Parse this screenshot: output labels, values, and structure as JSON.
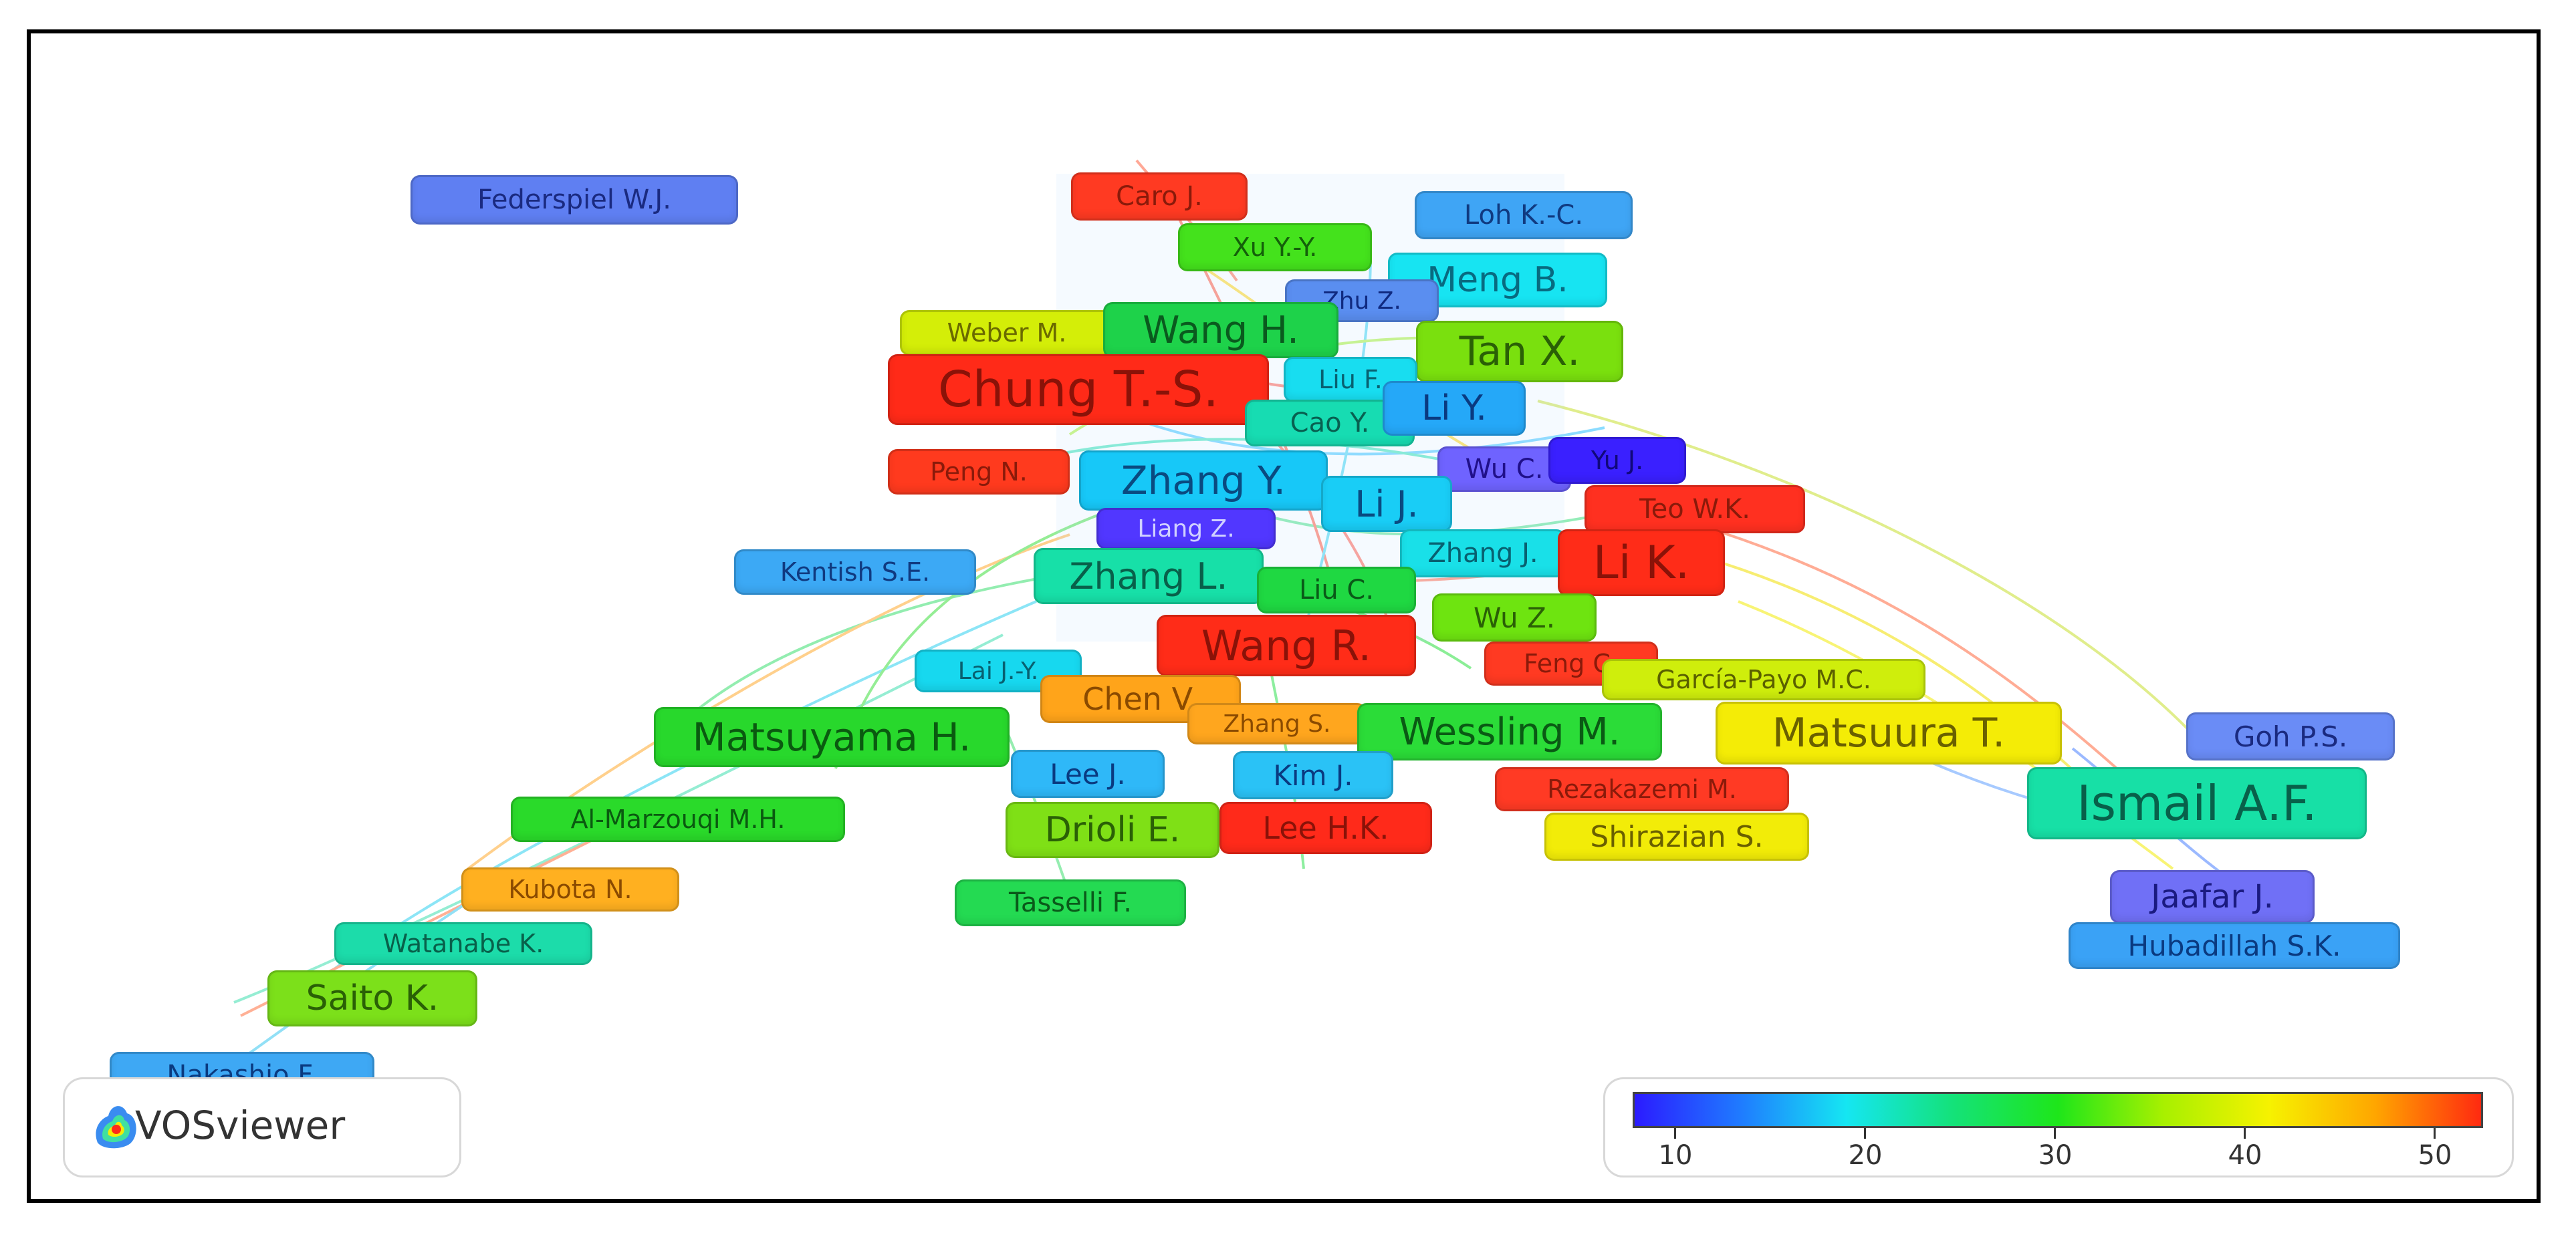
{
  "app": {
    "logo_text": "VOSviewer"
  },
  "colorscale": {
    "stops": [
      "#2b1bff",
      "#1f7bff",
      "#15e6f2",
      "#14e27a",
      "#1ee61a",
      "#a8f000",
      "#f6f200",
      "#ffa600",
      "#ff2a10"
    ],
    "ticks": [
      "10",
      "20",
      "30",
      "40",
      "50"
    ]
  },
  "nodes": [
    {
      "label": "Federspiel W.J.",
      "color": "#5f7ff2"
    },
    {
      "label": "Caro J.",
      "color": "#ff3a22"
    },
    {
      "label": "Loh K.-C.",
      "color": "#3fa5f5"
    },
    {
      "label": "Xu Y.-Y.",
      "color": "#44e21c"
    },
    {
      "label": "Meng B.",
      "color": "#17e4f2"
    },
    {
      "label": "Zhu Z.",
      "color": "#5a8ef0"
    },
    {
      "label": "Weber M.",
      "color": "#d4ee08"
    },
    {
      "label": "Wang H.",
      "color": "#1ed24a"
    },
    {
      "label": "Tan X.",
      "color": "#7ae00e"
    },
    {
      "label": "Chung T.-S.",
      "color": "#ff2a18"
    },
    {
      "label": "Liu F.",
      "color": "#18ddf0"
    },
    {
      "label": "Cao Y.",
      "color": "#17dcb2"
    },
    {
      "label": "Li Y.",
      "color": "#25a8f8"
    },
    {
      "label": "Peng N.",
      "color": "#ff3a1e"
    },
    {
      "label": "Zhang Y.",
      "color": "#17c8f8"
    },
    {
      "label": "Wu C.",
      "color": "#6f63ff"
    },
    {
      "label": "Yu J.",
      "color": "#3a20ff"
    },
    {
      "label": "Li J.",
      "color": "#19cdf6"
    },
    {
      "label": "Teo W.K.",
      "color": "#ff3020"
    },
    {
      "label": "Liang Z.",
      "color": "#5137ff"
    },
    {
      "label": "Zhang J.",
      "color": "#19e0e8"
    },
    {
      "label": "Li K.",
      "color": "#ff2c18"
    },
    {
      "label": "Kentish S.E.",
      "color": "#3ca9f5"
    },
    {
      "label": "Zhang L.",
      "color": "#17e0a8"
    },
    {
      "label": "Liu C.",
      "color": "#1fd842"
    },
    {
      "label": "Wu Z.",
      "color": "#6ee410"
    },
    {
      "label": "Wang R.",
      "color": "#ff2c18"
    },
    {
      "label": "Feng C.",
      "color": "#ff3a22"
    },
    {
      "label": "Lai J.-Y.",
      "color": "#17d8ef"
    },
    {
      "label": "García-Payo M.C.",
      "color": "#cfee0c"
    },
    {
      "label": "Chen V.",
      "color": "#ffa41a"
    },
    {
      "label": "Zhang S.",
      "color": "#ffa61e"
    },
    {
      "label": "Wessling M.",
      "color": "#2bdc38"
    },
    {
      "label": "Matsuura T.",
      "color": "#f4ec06"
    },
    {
      "label": "Matsuyama H.",
      "color": "#28d82c"
    },
    {
      "label": "Goh P.S.",
      "color": "#6a8cf6"
    },
    {
      "label": "Lee J.",
      "color": "#2fb8f8"
    },
    {
      "label": "Kim J.",
      "color": "#2ac2f6"
    },
    {
      "label": "Rezakazemi M.",
      "color": "#ff3a24"
    },
    {
      "label": "Ismail A.F.",
      "color": "#17e0a6"
    },
    {
      "label": "Al-Marzouqi M.H.",
      "color": "#2ada2a"
    },
    {
      "label": "Drioli E.",
      "color": "#7fe016"
    },
    {
      "label": "Lee H.K.",
      "color": "#ff2a1a"
    },
    {
      "label": "Shirazian S.",
      "color": "#f2ec08"
    },
    {
      "label": "Kubota N.",
      "color": "#ffb020"
    },
    {
      "label": "Tasselli F.",
      "color": "#24da52"
    },
    {
      "label": "Jaafar J.",
      "color": "#7070f6"
    },
    {
      "label": "Watanabe K.",
      "color": "#1cdcaa"
    },
    {
      "label": "Hubadillah S.K.",
      "color": "#3aa2f6"
    },
    {
      "label": "Saito K.",
      "color": "#7ce01a"
    },
    {
      "label": "Nakashio F.",
      "color": "#3ea8f4"
    }
  ]
}
